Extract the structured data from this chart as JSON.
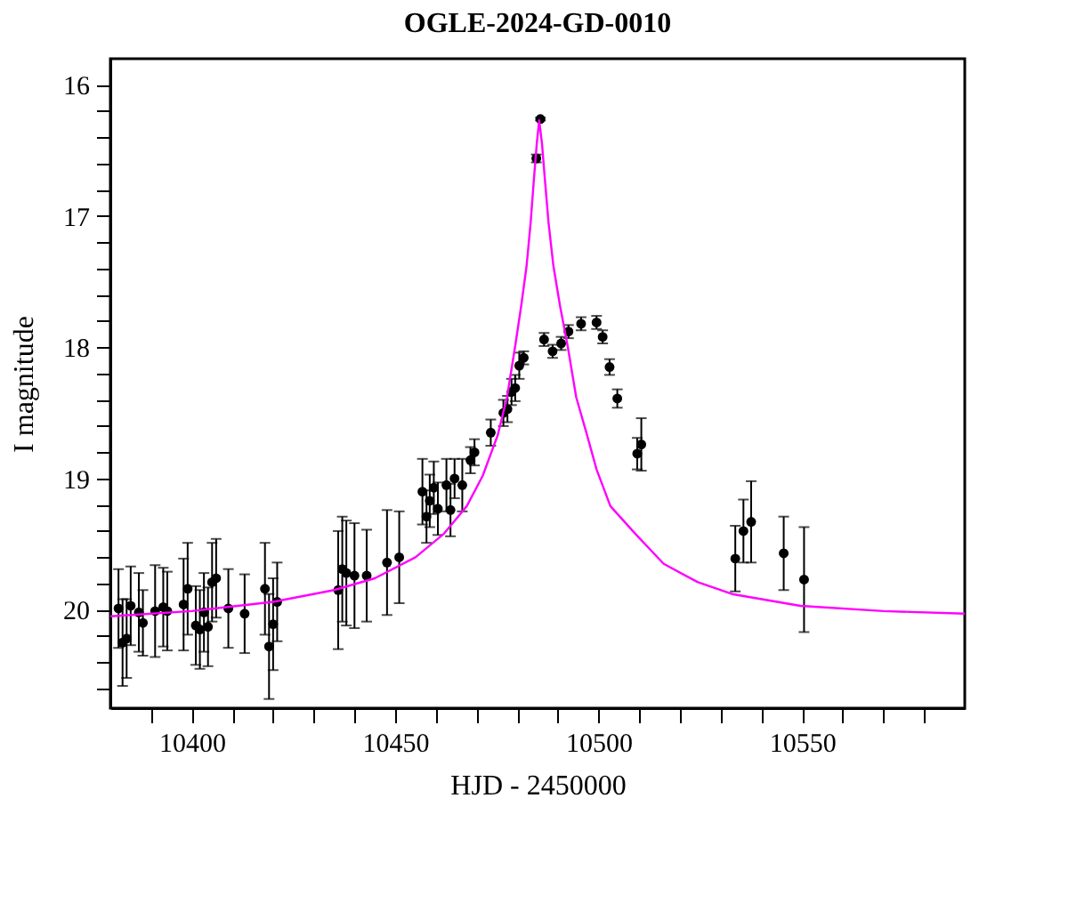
{
  "chart_data": {
    "type": "scatter",
    "title": "OGLE-2024-GD-0010",
    "xlabel": "HJD - 2450000",
    "ylabel": "I magnitude",
    "xlim": [
      10380,
      10590
    ],
    "ylim": [
      20.75,
      15.8
    ],
    "xticks": [
      {
        "value": 10390,
        "label": null
      },
      10400,
      {
        "value": 10410,
        "label": null
      },
      {
        "value": 10420,
        "label": null
      },
      {
        "value": 10430,
        "label": null
      },
      {
        "value": 10440,
        "label": null
      },
      10450,
      {
        "value": 10460,
        "label": null
      },
      {
        "value": 10470,
        "label": null
      },
      {
        "value": 10480,
        "label": null
      },
      {
        "value": 10490,
        "label": null
      },
      10500,
      {
        "value": 10510,
        "label": null
      },
      {
        "value": 10520,
        "label": null
      },
      {
        "value": 10530,
        "label": null
      },
      {
        "value": 10540,
        "label": null
      },
      10550,
      {
        "value": 10560,
        "label": null
      },
      {
        "value": 10570,
        "label": null
      },
      {
        "value": 10580,
        "label": null
      }
    ],
    "yticks": [
      16,
      {
        "value": 16.2,
        "label": null
      },
      {
        "value": 16.4,
        "label": null
      },
      {
        "value": 16.6,
        "label": null
      },
      {
        "value": 16.8,
        "label": null
      },
      17,
      {
        "value": 17.2,
        "label": null
      },
      {
        "value": 17.4,
        "label": null
      },
      {
        "value": 17.6,
        "label": null
      },
      {
        "value": 17.8,
        "label": null
      },
      18,
      {
        "value": 18.2,
        "label": null
      },
      {
        "value": 18.4,
        "label": null
      },
      {
        "value": 18.6,
        "label": null
      },
      {
        "value": 18.8,
        "label": null
      },
      19,
      {
        "value": 19.2,
        "label": null
      },
      {
        "value": 19.4,
        "label": null
      },
      {
        "value": 19.6,
        "label": null
      },
      {
        "value": 19.8,
        "label": null
      },
      20,
      {
        "value": 20.2,
        "label": null
      },
      {
        "value": 20.4,
        "label": null
      },
      {
        "value": 20.6,
        "label": null
      }
    ],
    "series": [
      {
        "color": "#000000",
        "marker": "circle",
        "x": [
          10382,
          10383,
          10384,
          10385,
          10387,
          10388,
          10391,
          10393,
          10394,
          10398,
          10399,
          10401,
          10402,
          10403,
          10404,
          10405,
          10406,
          10409,
          10413,
          10418,
          10419,
          10420,
          10421,
          10436,
          10437,
          10438,
          10440,
          10443,
          10448,
          10451,
          10456.7,
          10457.7,
          10458.5,
          10459.5,
          10460.5,
          10462.6,
          10463.6,
          10464.6,
          10466.5,
          10468.5,
          10469.5,
          10473.5,
          10476.6,
          10477.6,
          10478.6,
          10479.5,
          10480.5,
          10481.6,
          10484.7,
          10485.7,
          10486.6,
          10488.7,
          10490.8,
          10492.6,
          10495.7,
          10499.5,
          10501,
          10502.7,
          10504.6,
          10509.5,
          10510.5,
          10533.6,
          10535.6,
          10537.5,
          10545.5,
          10550.5
        ],
        "values": [
          19.99,
          20.25,
          20.22,
          19.97,
          20.02,
          20.1,
          20.01,
          19.98,
          20.01,
          19.96,
          19.84,
          20.12,
          20.15,
          20.02,
          20.13,
          19.79,
          19.76,
          19.99,
          20.03,
          19.84,
          20.28,
          20.11,
          19.94,
          19.85,
          19.69,
          19.72,
          19.74,
          19.74,
          19.64,
          19.6,
          19.1,
          19.29,
          19.17,
          19.07,
          19.23,
          19.05,
          19.24,
          19.0,
          19.05,
          18.86,
          18.8,
          18.65,
          18.5,
          18.47,
          18.34,
          18.31,
          18.14,
          18.08,
          16.56,
          16.26,
          17.94,
          18.03,
          17.97,
          17.88,
          17.82,
          17.81,
          17.92,
          18.15,
          18.39,
          18.81,
          18.74,
          19.61,
          19.4,
          19.33,
          19.57,
          19.77
        ],
        "errors": [
          0.3,
          0.33,
          0.3,
          0.3,
          0.3,
          0.25,
          0.35,
          0.3,
          0.3,
          0.35,
          0.35,
          0.3,
          0.3,
          0.3,
          0.3,
          0.3,
          0.3,
          0.3,
          0.3,
          0.35,
          0.4,
          0.35,
          0.3,
          0.45,
          0.4,
          0.4,
          0.4,
          0.35,
          0.4,
          0.35,
          0.25,
          0.2,
          0.2,
          0.2,
          0.2,
          0.2,
          0.2,
          0.15,
          0.2,
          0.1,
          0.1,
          0.1,
          0.1,
          0.1,
          0.1,
          0.1,
          0.1,
          0.05,
          0.03,
          0.01,
          0.05,
          0.05,
          0.05,
          0.05,
          0.05,
          0.05,
          0.05,
          0.06,
          0.07,
          0.12,
          0.2,
          0.25,
          0.24,
          0.31,
          0.28,
          0.4
        ]
      },
      {
        "type": "line",
        "color": "#ff00ff",
        "marker": "none",
        "line_style": "solid",
        "x": [
          10380,
          10400,
          10420,
          10435,
          10445,
          10455,
          10462,
          10467.6,
          10471.5,
          10475.2,
          10477.5,
          10479.5,
          10481,
          10482.3,
          10483.3,
          10484.1,
          10484.8,
          10485.4,
          10486.1,
          10486.8,
          10487.7,
          10488.9,
          10490.5,
          10492.4,
          10494.5,
          10497,
          10499.5,
          10502.9,
          10509,
          10516,
          10524.4,
          10532.8,
          10549.6,
          10570,
          10590
        ],
        "values": [
          20.05,
          20.01,
          19.94,
          19.85,
          19.76,
          19.6,
          19.42,
          19.21,
          18.98,
          18.67,
          18.38,
          17.99,
          17.68,
          17.38,
          17.05,
          16.72,
          16.45,
          16.27,
          16.45,
          16.72,
          17.05,
          17.38,
          17.68,
          17.99,
          18.38,
          18.65,
          18.93,
          19.21,
          19.42,
          19.65,
          19.79,
          19.88,
          19.97,
          20.01,
          20.03
        ]
      }
    ]
  }
}
